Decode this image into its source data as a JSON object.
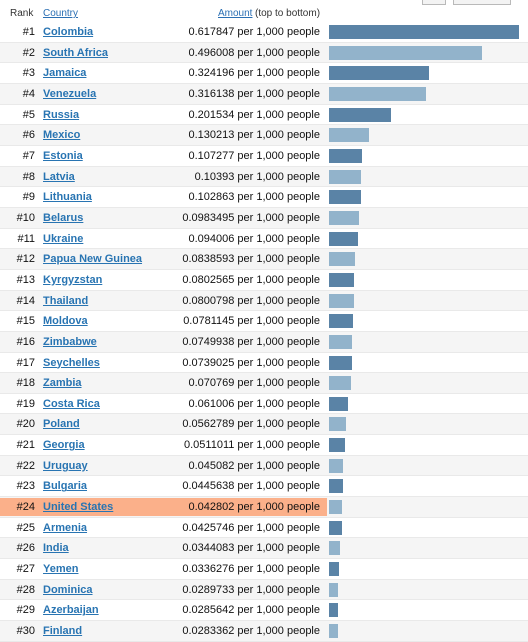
{
  "header": {
    "rank_label": "Rank",
    "country_label": "Country",
    "amount_label": "Amount",
    "order_label": "(top to bottom)"
  },
  "colors": {
    "bar_dark": "#5a83a6",
    "bar_light": "#92b3cb",
    "highlight": "#fbb08a",
    "link": "#2874b2"
  },
  "unit_text": "per 1,000 people",
  "max_value": 0.617847,
  "rows": [
    {
      "rank": "#1",
      "country": "Colombia",
      "amount": "0.617847 per 1,000 people",
      "value": 0.617847
    },
    {
      "rank": "#2",
      "country": "South Africa",
      "amount": "0.496008 per 1,000 people",
      "value": 0.496008
    },
    {
      "rank": "#3",
      "country": "Jamaica",
      "amount": "0.324196 per 1,000 people",
      "value": 0.324196
    },
    {
      "rank": "#4",
      "country": "Venezuela",
      "amount": "0.316138 per 1,000 people",
      "value": 0.316138
    },
    {
      "rank": "#5",
      "country": "Russia",
      "amount": "0.201534 per 1,000 people",
      "value": 0.201534
    },
    {
      "rank": "#6",
      "country": "Mexico",
      "amount": "0.130213 per 1,000 people",
      "value": 0.130213
    },
    {
      "rank": "#7",
      "country": "Estonia",
      "amount": "0.107277 per 1,000 people",
      "value": 0.107277
    },
    {
      "rank": "#8",
      "country": "Latvia",
      "amount": "0.10393 per 1,000 people",
      "value": 0.10393
    },
    {
      "rank": "#9",
      "country": "Lithuania",
      "amount": "0.102863 per 1,000 people",
      "value": 0.102863
    },
    {
      "rank": "#10",
      "country": "Belarus",
      "amount": "0.0983495 per 1,000 people",
      "value": 0.0983495
    },
    {
      "rank": "#11",
      "country": "Ukraine",
      "amount": "0.094006 per 1,000 people",
      "value": 0.094006
    },
    {
      "rank": "#12",
      "country": "Papua New Guinea",
      "amount": "0.0838593 per 1,000 people",
      "value": 0.0838593
    },
    {
      "rank": "#13",
      "country": "Kyrgyzstan",
      "amount": "0.0802565 per 1,000 people",
      "value": 0.0802565
    },
    {
      "rank": "#14",
      "country": "Thailand",
      "amount": "0.0800798 per 1,000 people",
      "value": 0.0800798
    },
    {
      "rank": "#15",
      "country": "Moldova",
      "amount": "0.0781145 per 1,000 people",
      "value": 0.0781145
    },
    {
      "rank": "#16",
      "country": "Zimbabwe",
      "amount": "0.0749938 per 1,000 people",
      "value": 0.0749938
    },
    {
      "rank": "#17",
      "country": "Seychelles",
      "amount": "0.0739025 per 1,000 people",
      "value": 0.0739025
    },
    {
      "rank": "#18",
      "country": "Zambia",
      "amount": "0.070769 per 1,000 people",
      "value": 0.070769
    },
    {
      "rank": "#19",
      "country": "Costa Rica",
      "amount": "0.061006 per 1,000 people",
      "value": 0.061006
    },
    {
      "rank": "#20",
      "country": "Poland",
      "amount": "0.0562789 per 1,000 people",
      "value": 0.0562789
    },
    {
      "rank": "#21",
      "country": "Georgia",
      "amount": "0.0511011 per 1,000 people",
      "value": 0.0511011
    },
    {
      "rank": "#22",
      "country": "Uruguay",
      "amount": "0.045082 per 1,000 people",
      "value": 0.045082
    },
    {
      "rank": "#23",
      "country": "Bulgaria",
      "amount": "0.0445638 per 1,000 people",
      "value": 0.0445638
    },
    {
      "rank": "#24",
      "country": "United States",
      "amount": "0.042802 per 1,000 people",
      "value": 0.042802,
      "highlight": true
    },
    {
      "rank": "#25",
      "country": "Armenia",
      "amount": "0.0425746 per 1,000 people",
      "value": 0.0425746
    },
    {
      "rank": "#26",
      "country": "India",
      "amount": "0.0344083 per 1,000 people",
      "value": 0.0344083
    },
    {
      "rank": "#27",
      "country": "Yemen",
      "amount": "0.0336276 per 1,000 people",
      "value": 0.0336276
    },
    {
      "rank": "#28",
      "country": "Dominica",
      "amount": "0.0289733 per 1,000 people",
      "value": 0.0289733
    },
    {
      "rank": "#29",
      "country": "Azerbaijan",
      "amount": "0.0285642 per 1,000 people",
      "value": 0.0285642
    },
    {
      "rank": "#30",
      "country": "Finland",
      "amount": "0.0283362 per 1,000 people",
      "value": 0.0283362
    }
  ]
}
